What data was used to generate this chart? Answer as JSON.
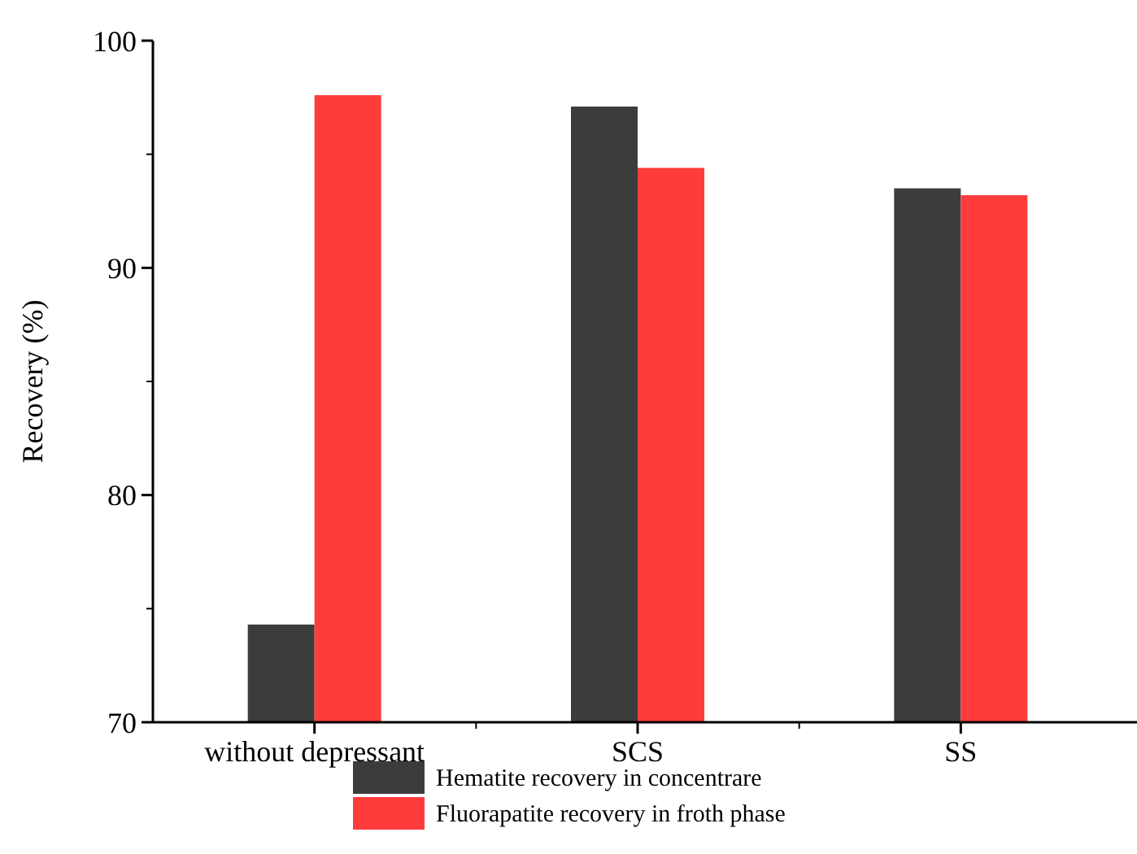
{
  "chart_data": {
    "type": "bar",
    "ylabel": "Recovery (%)",
    "categories": [
      "without depressant",
      "SCS",
      "SS"
    ],
    "series": [
      {
        "name": "Hematite recovery in concentrare",
        "color": "#3c3c3c",
        "values": [
          74.3,
          97.1,
          93.5
        ]
      },
      {
        "name": "Fluorapatite recovery in froth phase",
        "color": "#ff3c3c",
        "values": [
          97.6,
          94.4,
          93.2
        ]
      }
    ],
    "ylim": [
      70,
      100
    ],
    "yticks": [
      70,
      80,
      90,
      100
    ],
    "legend": "bottom",
    "grid": false
  }
}
